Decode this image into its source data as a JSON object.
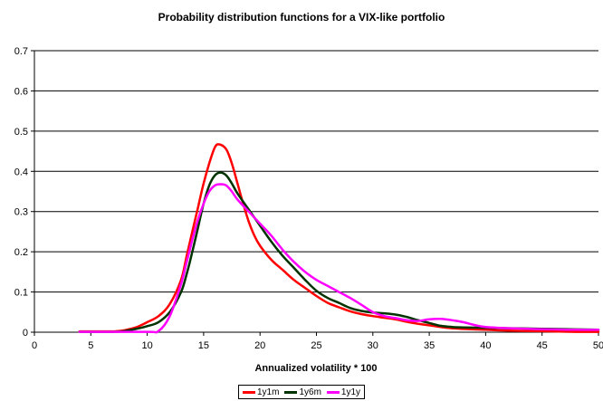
{
  "chart_data": {
    "type": "line",
    "title": "Probability distribution functions for a VIX-like portfolio",
    "xlabel": "Annualized volatility * 100",
    "ylabel": "",
    "xlim": [
      0,
      50
    ],
    "ylim": [
      0,
      0.7
    ],
    "xticks": [
      0,
      5,
      10,
      15,
      20,
      25,
      30,
      35,
      40,
      45,
      50
    ],
    "yticks": [
      0,
      0.1,
      0.2,
      0.3,
      0.4,
      0.5,
      0.6,
      0.7
    ],
    "ytick_labels": [
      "0",
      "0.1",
      "0.2",
      "0.3",
      "0.4",
      "0.5",
      "0.6",
      "0.7"
    ],
    "grid": "horizontal",
    "legend_position": "bottom",
    "series": [
      {
        "name": "1y1m",
        "color": "#ff0000",
        "x": [
          4,
          5.5,
          7,
          8,
          9,
          10,
          11,
          12,
          13,
          13.5,
          14,
          14.5,
          15,
          15.5,
          16,
          16.4,
          17,
          17.5,
          18,
          18.5,
          19,
          19.5,
          20,
          21,
          22,
          23,
          24,
          25,
          26,
          27,
          28,
          29,
          30,
          31,
          32,
          33,
          34,
          35,
          36,
          37,
          38,
          40,
          42,
          44,
          46,
          48,
          50
        ],
        "y": [
          0.002,
          0.002,
          0.002,
          0.005,
          0.012,
          0.025,
          0.04,
          0.07,
          0.13,
          0.19,
          0.25,
          0.31,
          0.37,
          0.42,
          0.46,
          0.467,
          0.455,
          0.42,
          0.37,
          0.32,
          0.275,
          0.24,
          0.215,
          0.18,
          0.155,
          0.13,
          0.11,
          0.09,
          0.073,
          0.062,
          0.052,
          0.045,
          0.04,
          0.036,
          0.032,
          0.026,
          0.021,
          0.017,
          0.013,
          0.01,
          0.008,
          0.006,
          0.004,
          0.003,
          0.002,
          0.001,
          0.001
        ]
      },
      {
        "name": "1y6m",
        "color": "#003300",
        "x": [
          4,
          7,
          8,
          9,
          10,
          11,
          12,
          13,
          13.5,
          14,
          14.5,
          15,
          15.5,
          16,
          16.5,
          17,
          17.5,
          18,
          19,
          20,
          21,
          22,
          23,
          24,
          25,
          26,
          27,
          28,
          29,
          30,
          31,
          32,
          33,
          34,
          35,
          36,
          37,
          38,
          40,
          42,
          44,
          46,
          48,
          50
        ],
        "y": [
          0.001,
          0.001,
          0.003,
          0.008,
          0.015,
          0.025,
          0.05,
          0.1,
          0.145,
          0.2,
          0.26,
          0.32,
          0.365,
          0.39,
          0.397,
          0.39,
          0.37,
          0.345,
          0.305,
          0.265,
          0.225,
          0.19,
          0.16,
          0.13,
          0.103,
          0.085,
          0.073,
          0.06,
          0.053,
          0.049,
          0.047,
          0.044,
          0.038,
          0.03,
          0.023,
          0.016,
          0.013,
          0.012,
          0.011,
          0.01,
          0.009,
          0.008,
          0.007,
          0.006
        ]
      },
      {
        "name": "1y1y",
        "color": "#ff00ff",
        "x": [
          4,
          10,
          11,
          12,
          13,
          13.5,
          14,
          14.5,
          15,
          15.5,
          16,
          16.5,
          17,
          17.5,
          18,
          19,
          20,
          21,
          22,
          23,
          24,
          25,
          26,
          27,
          28,
          29,
          30,
          31,
          32,
          33,
          34,
          35,
          36,
          37,
          38,
          39,
          40,
          42,
          44,
          46,
          48,
          50
        ],
        "y": [
          0.001,
          0.001,
          0.003,
          0.04,
          0.12,
          0.175,
          0.23,
          0.28,
          0.32,
          0.35,
          0.365,
          0.368,
          0.365,
          0.35,
          0.33,
          0.3,
          0.27,
          0.24,
          0.205,
          0.175,
          0.15,
          0.13,
          0.115,
          0.1,
          0.085,
          0.068,
          0.05,
          0.04,
          0.035,
          0.03,
          0.028,
          0.032,
          0.033,
          0.03,
          0.025,
          0.018,
          0.013,
          0.01,
          0.008,
          0.007,
          0.006,
          0.006
        ]
      }
    ]
  }
}
